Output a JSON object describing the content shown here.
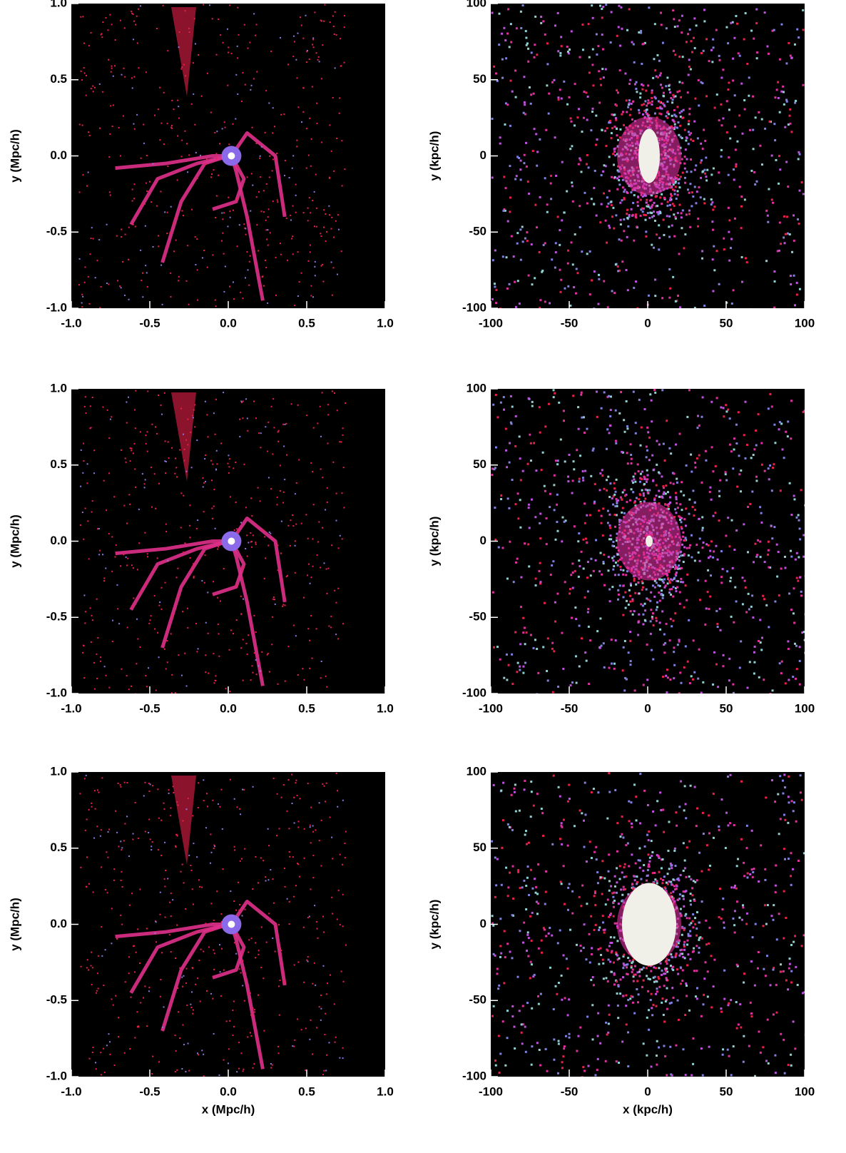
{
  "chart_data": [
    {
      "type": "image",
      "ylabel": "y (Mpc/h)",
      "xlim": [
        -1,
        1
      ],
      "ylim": [
        -1,
        1
      ],
      "xticks": [
        {
          "value": -1,
          "label": "-1.0"
        },
        {
          "value": -0.5,
          "label": "-0.5"
        },
        {
          "value": 0,
          "label": "0.0"
        },
        0.5,
        {
          "value": 1,
          "label": "1.0"
        }
      ],
      "yticks": [
        {
          "value": -1,
          "label": "-1.0"
        },
        {
          "value": -0.5,
          "label": "-0.5"
        },
        {
          "value": 0,
          "label": "0.0"
        },
        0.5,
        {
          "value": 1,
          "label": "1.0"
        }
      ]
    },
    {
      "type": "image",
      "ylabel": "y (kpc/h)",
      "xlim": [
        -100,
        100
      ],
      "ylim": [
        -100,
        100
      ],
      "xticks": [
        -100,
        -50,
        0,
        50,
        100
      ],
      "yticks": [
        -100,
        -50,
        0,
        50,
        100
      ]
    },
    {
      "type": "image",
      "ylabel": "y (Mpc/h)",
      "xlim": [
        -1,
        1
      ],
      "ylim": [
        -1,
        1
      ],
      "xticks": [
        {
          "value": -1,
          "label": "-1.0"
        },
        {
          "value": -0.5,
          "label": "-0.5"
        },
        {
          "value": 0,
          "label": "0.0"
        },
        0.5,
        {
          "value": 1,
          "label": "1.0"
        }
      ],
      "yticks": [
        {
          "value": -1,
          "label": "-1.0"
        },
        {
          "value": -0.5,
          "label": "-0.5"
        },
        {
          "value": 0,
          "label": "0.0"
        },
        0.5,
        {
          "value": 1,
          "label": "1.0"
        }
      ]
    },
    {
      "type": "image",
      "ylabel": "y (kpc/h)",
      "xlim": [
        -100,
        100
      ],
      "ylim": [
        -100,
        100
      ],
      "xticks": [
        -100,
        -50,
        0,
        50,
        100
      ],
      "yticks": [
        -100,
        -50,
        0,
        50,
        100
      ]
    },
    {
      "type": "image",
      "xlabel": "x (Mpc/h)",
      "ylabel": "y (Mpc/h)",
      "xlim": [
        -1,
        1
      ],
      "ylim": [
        -1,
        1
      ],
      "xticks": [
        {
          "value": -1,
          "label": "-1.0"
        },
        {
          "value": -0.5,
          "label": "-0.5"
        },
        {
          "value": 0,
          "label": "0.0"
        },
        0.5,
        {
          "value": 1,
          "label": "1.0"
        }
      ],
      "yticks": [
        {
          "value": -1,
          "label": "-1.0"
        },
        {
          "value": -0.5,
          "label": "-0.5"
        },
        {
          "value": 0,
          "label": "0.0"
        },
        0.5,
        {
          "value": 1,
          "label": "1.0"
        }
      ]
    },
    {
      "type": "image",
      "xlabel": "x (kpc/h)",
      "ylabel": "y (kpc/h)",
      "xlim": [
        -100,
        100
      ],
      "ylim": [
        -100,
        100
      ],
      "xticks": [
        -100,
        -50,
        0,
        50,
        100
      ],
      "yticks": [
        -100,
        -50,
        0,
        50,
        100
      ]
    }
  ]
}
